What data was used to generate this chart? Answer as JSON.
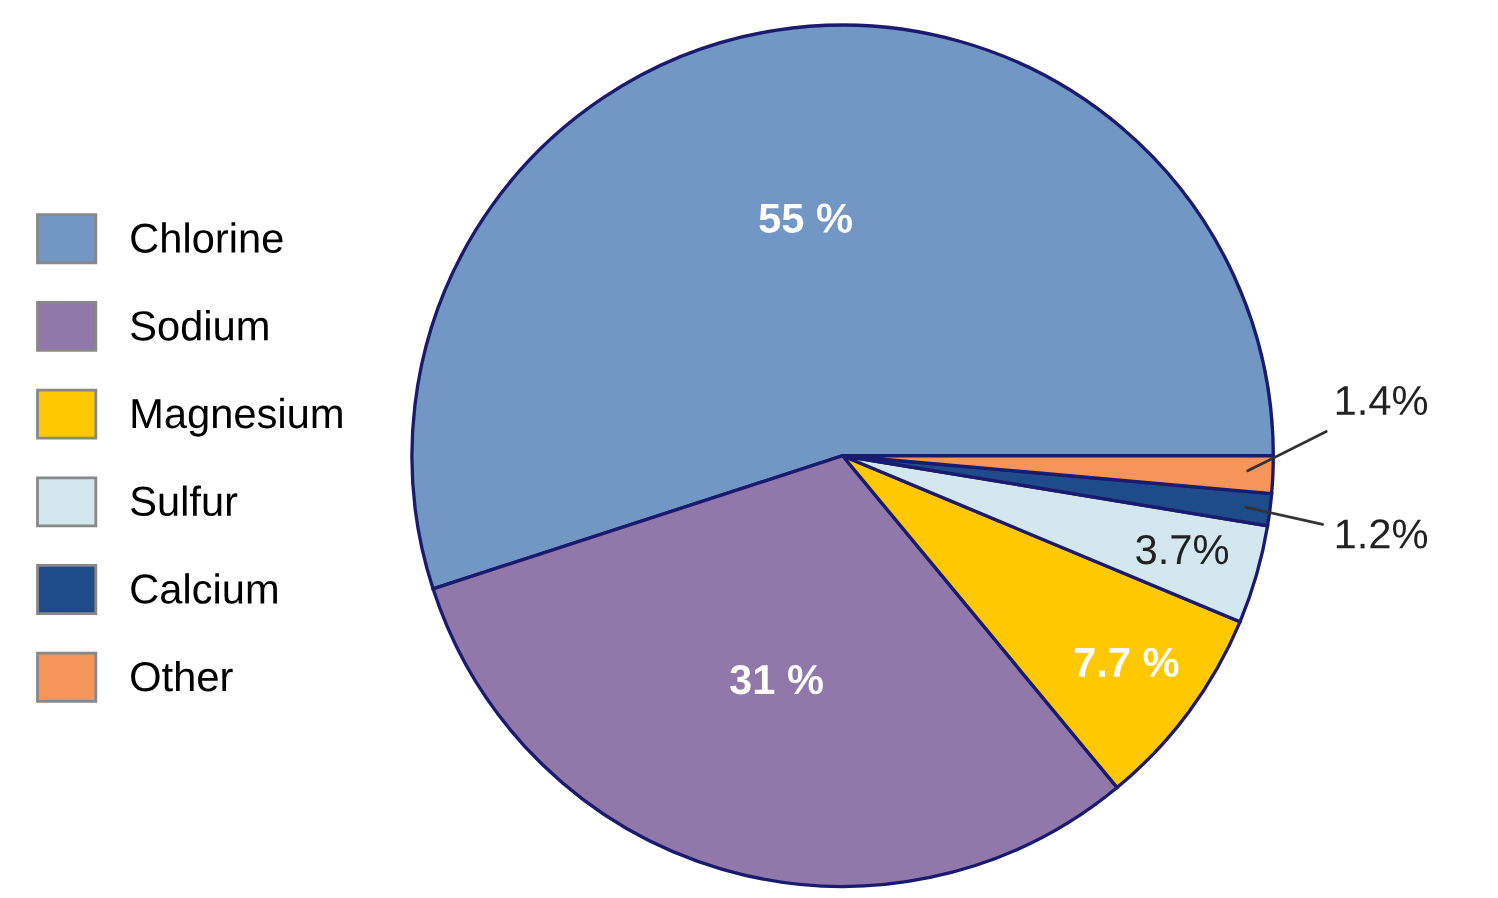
{
  "chart_data": {
    "type": "pie",
    "categories": [
      "Chlorine",
      "Sodium",
      "Magnesium",
      "Sulfur",
      "Calcium",
      "Other"
    ],
    "values": [
      55,
      31,
      7.7,
      3.7,
      1.2,
      1.4
    ],
    "value_labels": [
      "55 %",
      "31 %",
      "7.7 %",
      "3.7%",
      "1.2%",
      "1.4%"
    ],
    "colors": [
      "#7397c5",
      "#9178ab",
      "#ffc800",
      "#d2e8ee",
      "#1f4b8a",
      "#f5955a"
    ],
    "legend": "left"
  }
}
